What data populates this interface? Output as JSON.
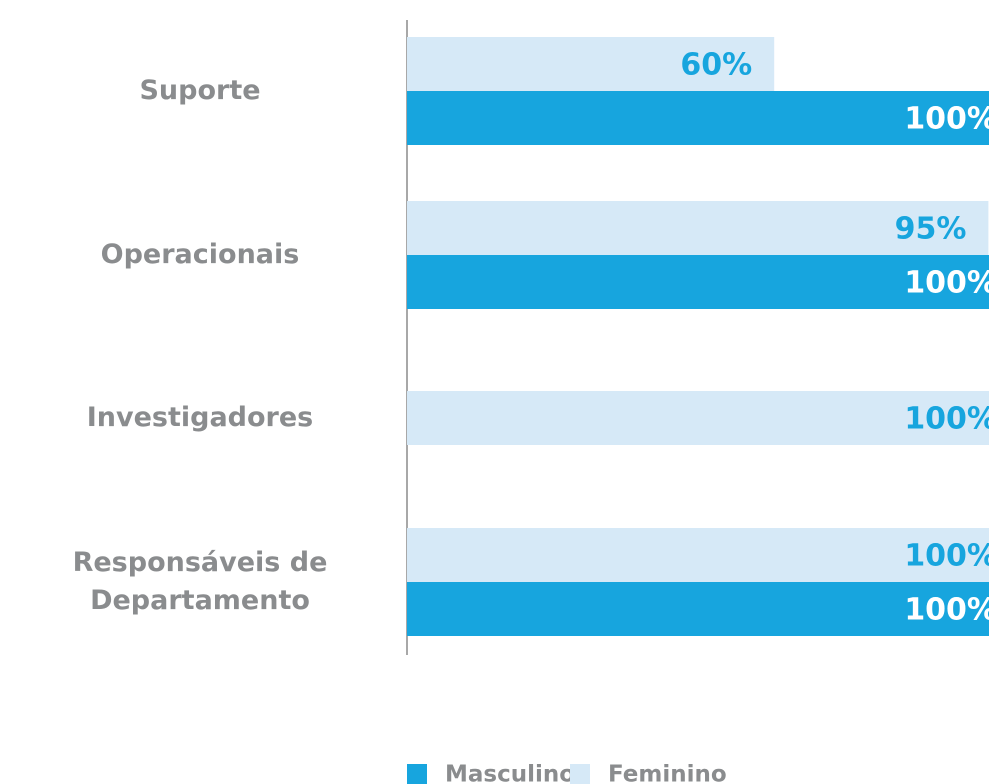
{
  "chart_data": {
    "type": "bar",
    "orientation": "horizontal",
    "categories": [
      "Suporte",
      "Operacionais",
      "Investigadores",
      "Responsáveis de Departamento"
    ],
    "series": [
      {
        "name": "Masculino",
        "color": "#17a5de",
        "values": [
          100,
          100,
          null,
          100
        ],
        "value_labels": [
          "100%",
          "100%",
          null,
          "100%"
        ]
      },
      {
        "name": "Feminino",
        "color": "#d6e9f7",
        "values": [
          60,
          95,
          100,
          100
        ],
        "value_labels": [
          "60%",
          "95%",
          "100%",
          "100%"
        ]
      }
    ],
    "xlim": [
      0,
      100
    ]
  }
}
